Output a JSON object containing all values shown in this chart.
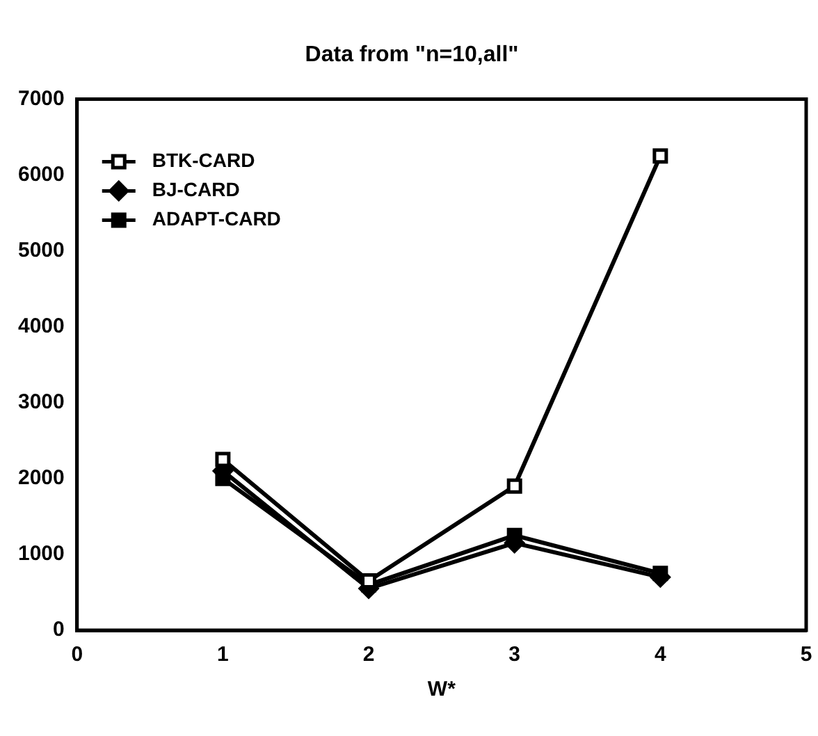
{
  "chart_data": {
    "type": "line",
    "title": "Data from \"n=10,all\"",
    "xlabel": "W*",
    "x": [
      1,
      2,
      3,
      4
    ],
    "series": [
      {
        "name": "BTK-CARD",
        "color": "#000000",
        "marker": "square",
        "values": [
          2250,
          650,
          1900,
          6250
        ]
      },
      {
        "name": "BJ-CARD",
        "color": "#000000",
        "marker": "diamond",
        "values": [
          2100,
          550,
          1150,
          700
        ]
      },
      {
        "name": "ADAPT-CARD",
        "color": "#000000",
        "marker": "square",
        "values": [
          2000,
          600,
          1250,
          750
        ]
      }
    ],
    "xlim": [
      0,
      5
    ],
    "xticks": [
      0,
      1,
      2,
      3,
      4,
      5
    ],
    "ylim": [
      0,
      7000
    ],
    "yticks": [
      0,
      1000,
      2000,
      3000,
      4000,
      5000,
      6000,
      7000
    ],
    "grid": false,
    "legend": "top left",
    "line_style": "solid"
  }
}
